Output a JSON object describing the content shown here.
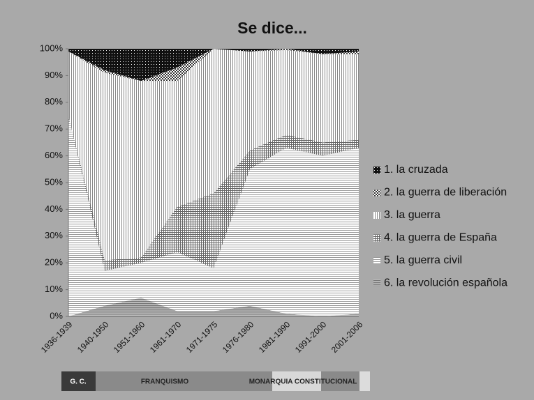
{
  "chart_data": {
    "type": "stacked_area",
    "title": "Se dice...",
    "categories": [
      "1936-1939",
      "1940-1950",
      "1951-1960",
      "1961-1970",
      "1971-1975",
      "1976-1980",
      "1981-1990",
      "1991-2000",
      "2001-2006"
    ],
    "series": [
      {
        "name": "1. la cruzada",
        "color": "#111111",
        "values": [
          1,
          8,
          12,
          7,
          0,
          1,
          0,
          2,
          1
        ]
      },
      {
        "name": "2. la guerra de liberación",
        "color": "#333333",
        "values": [
          0,
          1,
          0,
          5,
          0,
          0,
          0.5,
          0,
          1
        ]
      },
      {
        "name": "3. la guerra",
        "color": "#888888",
        "values": [
          24,
          70,
          66,
          47,
          54,
          37,
          31.5,
          33,
          32
        ]
      },
      {
        "name": "4. la guerra de España",
        "color": "#666666",
        "values": [
          0,
          4,
          2,
          17,
          28,
          7,
          5,
          5,
          3
        ]
      },
      {
        "name": "5. la guerra civil",
        "color": "#9a9a9a",
        "values": [
          75,
          13,
          13,
          22,
          16,
          51,
          62,
          60,
          62
        ]
      },
      {
        "name": "6. la revolución española",
        "color": "#777777",
        "values": [
          0,
          4,
          7,
          2,
          2,
          4,
          1,
          0,
          1
        ]
      }
    ],
    "ylim": [
      0,
      100
    ],
    "yticks": [
      {
        "value": 0,
        "label": "0%"
      },
      {
        "value": 10,
        "label": "10%"
      },
      {
        "value": 20,
        "label": "20%"
      },
      {
        "value": 30,
        "label": "30%"
      },
      {
        "value": 40,
        "label": "40%"
      },
      {
        "value": 50,
        "label": "50%"
      },
      {
        "value": 60,
        "label": "60%"
      },
      {
        "value": 70,
        "label": "70%"
      },
      {
        "value": 80,
        "label": "80%"
      },
      {
        "value": 90,
        "label": "90%"
      },
      {
        "value": 100,
        "label": "100%"
      }
    ],
    "legend": "right",
    "periods": [
      "G. C.",
      "FRANQUISMO",
      "MONARQUIA CONSTITUCIONAL"
    ]
  }
}
